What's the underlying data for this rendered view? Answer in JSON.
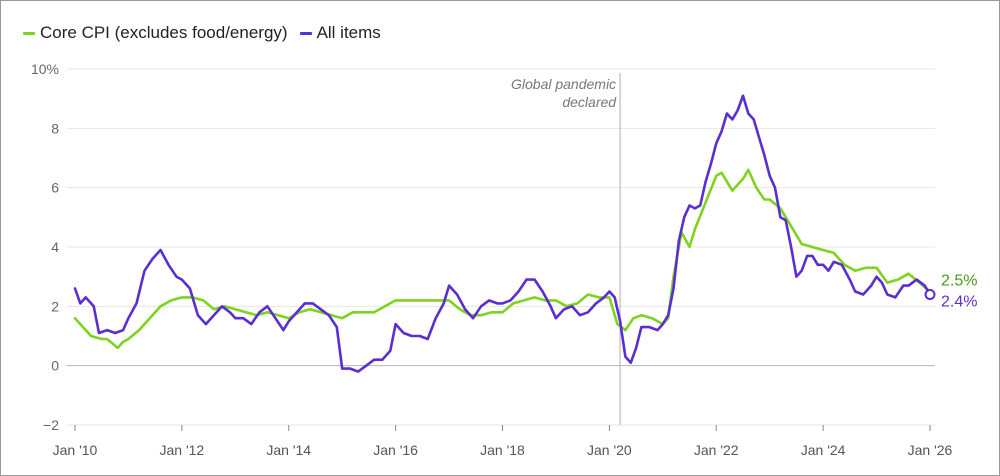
{
  "legend": {
    "core_label": "Core CPI (excludes food/energy)",
    "all_label": "All items"
  },
  "colors": {
    "core": "#7ed321",
    "all": "#5b2ed1",
    "core_label": "#4a9a1a",
    "all_label": "#5b2ed1"
  },
  "chart_data": {
    "type": "line",
    "ylim": [
      -2,
      10
    ],
    "xlim": [
      2010.0,
      2026.1
    ],
    "y_ticks": [
      {
        "value": 10,
        "label": "10%"
      },
      {
        "value": 8,
        "label": "8"
      },
      {
        "value": 6,
        "label": "6"
      },
      {
        "value": 4,
        "label": "4"
      },
      {
        "value": 2,
        "label": "2"
      },
      {
        "value": 0,
        "label": "0"
      },
      {
        "value": -2,
        "label": "−2"
      }
    ],
    "x_ticks": [
      {
        "value": 2010,
        "label": "Jan '10"
      },
      {
        "value": 2012,
        "label": "Jan '12"
      },
      {
        "value": 2014,
        "label": "Jan '14"
      },
      {
        "value": 2016,
        "label": "Jan '16"
      },
      {
        "value": 2018,
        "label": "Jan '18"
      },
      {
        "value": 2020,
        "label": "Jan '20"
      },
      {
        "value": 2022,
        "label": "Jan '22"
      },
      {
        "value": 2024,
        "label": "Jan '24"
      },
      {
        "value": 2026,
        "label": "Jan '26"
      }
    ],
    "grid": true,
    "annotation": {
      "x": 2020.2,
      "line1": "Global pandemic",
      "line2": "declared"
    },
    "end_labels": {
      "core": "2.5%",
      "all": "2.4%"
    },
    "series": [
      {
        "key": "core",
        "name": "Core CPI (excludes food/energy)",
        "x": [
          2010.0,
          2010.15,
          2010.3,
          2010.5,
          2010.6,
          2010.8,
          2010.9,
          2011.0,
          2011.2,
          2011.4,
          2011.6,
          2011.8,
          2012.0,
          2012.2,
          2012.4,
          2012.6,
          2012.8,
          2013.0,
          2013.2,
          2013.4,
          2013.6,
          2013.8,
          2014.0,
          2014.2,
          2014.4,
          2014.6,
          2014.8,
          2015.0,
          2015.2,
          2015.4,
          2015.6,
          2015.8,
          2016.0,
          2016.2,
          2016.4,
          2016.6,
          2016.8,
          2017.0,
          2017.2,
          2017.4,
          2017.6,
          2017.8,
          2018.0,
          2018.2,
          2018.4,
          2018.6,
          2018.8,
          2019.0,
          2019.2,
          2019.4,
          2019.6,
          2019.8,
          2020.0,
          2020.15,
          2020.3,
          2020.45,
          2020.6,
          2020.8,
          2021.0,
          2021.1,
          2021.2,
          2021.35,
          2021.5,
          2021.6,
          2021.8,
          2022.0,
          2022.1,
          2022.3,
          2022.5,
          2022.6,
          2022.75,
          2022.9,
          2023.0,
          2023.2,
          2023.4,
          2023.6,
          2023.8,
          2024.0,
          2024.2,
          2024.4,
          2024.6,
          2024.8,
          2025.0,
          2025.2,
          2025.4,
          2025.6,
          2025.8,
          2026.0
        ],
        "y": [
          1.6,
          1.3,
          1.0,
          0.9,
          0.9,
          0.6,
          0.8,
          0.9,
          1.2,
          1.6,
          2.0,
          2.2,
          2.3,
          2.3,
          2.2,
          1.9,
          2.0,
          1.9,
          1.8,
          1.7,
          1.8,
          1.7,
          1.6,
          1.8,
          1.9,
          1.8,
          1.7,
          1.6,
          1.8,
          1.8,
          1.8,
          2.0,
          2.2,
          2.2,
          2.2,
          2.2,
          2.2,
          2.2,
          1.9,
          1.7,
          1.7,
          1.8,
          1.8,
          2.1,
          2.2,
          2.3,
          2.2,
          2.2,
          2.0,
          2.1,
          2.4,
          2.3,
          2.3,
          1.4,
          1.2,
          1.6,
          1.7,
          1.6,
          1.4,
          1.6,
          3.0,
          4.5,
          4.0,
          4.6,
          5.5,
          6.4,
          6.5,
          5.9,
          6.3,
          6.6,
          6.0,
          5.6,
          5.6,
          5.3,
          4.7,
          4.1,
          4.0,
          3.9,
          3.8,
          3.4,
          3.2,
          3.3,
          3.3,
          2.8,
          2.9,
          3.1,
          2.8,
          2.5
        ]
      },
      {
        "key": "all",
        "name": "All items",
        "x": [
          2010.0,
          2010.1,
          2010.2,
          2010.35,
          2010.45,
          2010.6,
          2010.75,
          2010.9,
          2011.0,
          2011.15,
          2011.3,
          2011.45,
          2011.6,
          2011.75,
          2011.9,
          2012.0,
          2012.15,
          2012.3,
          2012.45,
          2012.6,
          2012.75,
          2012.9,
          2013.0,
          2013.15,
          2013.3,
          2013.45,
          2013.6,
          2013.75,
          2013.9,
          2014.0,
          2014.15,
          2014.3,
          2014.45,
          2014.6,
          2014.75,
          2014.9,
          2015.0,
          2015.15,
          2015.3,
          2015.45,
          2015.6,
          2015.75,
          2015.9,
          2016.0,
          2016.15,
          2016.3,
          2016.45,
          2016.6,
          2016.75,
          2016.9,
          2017.0,
          2017.15,
          2017.3,
          2017.45,
          2017.6,
          2017.75,
          2017.9,
          2018.0,
          2018.15,
          2018.3,
          2018.45,
          2018.6,
          2018.75,
          2018.9,
          2019.0,
          2019.15,
          2019.3,
          2019.45,
          2019.6,
          2019.75,
          2019.9,
          2020.0,
          2020.1,
          2020.2,
          2020.3,
          2020.4,
          2020.5,
          2020.6,
          2020.75,
          2020.9,
          2021.0,
          2021.1,
          2021.2,
          2021.3,
          2021.4,
          2021.5,
          2021.6,
          2021.7,
          2021.8,
          2021.9,
          2022.0,
          2022.1,
          2022.2,
          2022.3,
          2022.4,
          2022.5,
          2022.6,
          2022.7,
          2022.8,
          2022.9,
          2023.0,
          2023.1,
          2023.2,
          2023.3,
          2023.4,
          2023.5,
          2023.6,
          2023.7,
          2023.8,
          2023.9,
          2024.0,
          2024.1,
          2024.2,
          2024.35,
          2024.5,
          2024.6,
          2024.75,
          2024.9,
          2025.0,
          2025.1,
          2025.2,
          2025.35,
          2025.5,
          2025.6,
          2025.75,
          2025.9,
          2026.0
        ],
        "y": [
          2.6,
          2.1,
          2.3,
          2.0,
          1.1,
          1.2,
          1.1,
          1.2,
          1.6,
          2.1,
          3.2,
          3.6,
          3.9,
          3.4,
          3.0,
          2.9,
          2.6,
          1.7,
          1.4,
          1.7,
          2.0,
          1.8,
          1.6,
          1.6,
          1.4,
          1.8,
          2.0,
          1.6,
          1.2,
          1.5,
          1.8,
          2.1,
          2.1,
          1.9,
          1.7,
          1.3,
          -0.1,
          -0.1,
          -0.2,
          0.0,
          0.2,
          0.2,
          0.5,
          1.4,
          1.1,
          1.0,
          1.0,
          0.9,
          1.6,
          2.1,
          2.7,
          2.4,
          1.9,
          1.6,
          2.0,
          2.2,
          2.1,
          2.1,
          2.2,
          2.5,
          2.9,
          2.9,
          2.5,
          2.0,
          1.6,
          1.9,
          2.0,
          1.7,
          1.8,
          2.1,
          2.3,
          2.5,
          2.3,
          1.5,
          0.3,
          0.1,
          0.6,
          1.3,
          1.3,
          1.2,
          1.4,
          1.7,
          2.6,
          4.2,
          5.0,
          5.4,
          5.3,
          5.4,
          6.2,
          6.8,
          7.5,
          7.9,
          8.5,
          8.3,
          8.6,
          9.1,
          8.5,
          8.3,
          7.7,
          7.1,
          6.4,
          6.0,
          5.0,
          4.9,
          4.0,
          3.0,
          3.2,
          3.7,
          3.7,
          3.4,
          3.4,
          3.2,
          3.5,
          3.4,
          2.9,
          2.5,
          2.4,
          2.7,
          3.0,
          2.8,
          2.4,
          2.3,
          2.7,
          2.7,
          2.9,
          2.7,
          2.4
        ]
      }
    ]
  }
}
